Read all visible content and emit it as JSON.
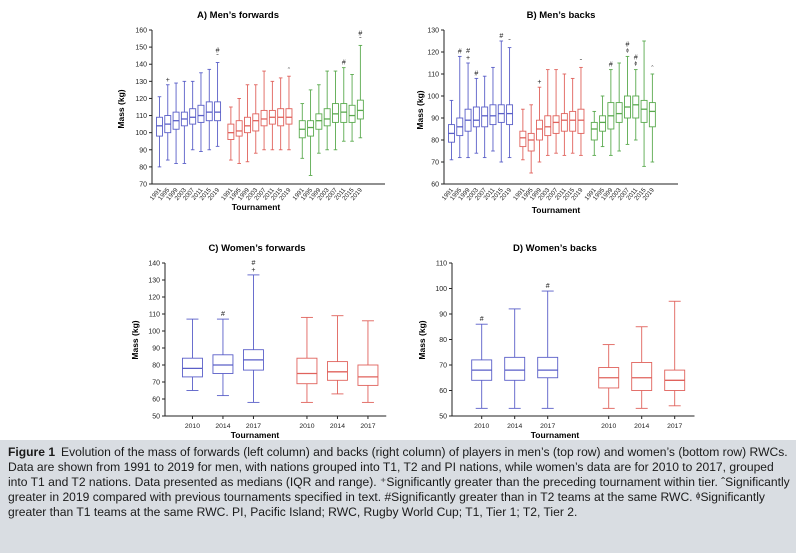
{
  "colors": {
    "T1": "#5a5fc8",
    "T2": "#e0625c",
    "PI": "#5aaa4e",
    "axis": "#222222"
  },
  "caption": {
    "figure_label": "Figure 1",
    "text": "Evolution of the mass of forwards (left column) and backs (right column) of players in men’s (top row) and women’s (bottom row) RWCs. Data are shown from 1991 to 2019 for men, with nations grouped into T1, T2 and PI nations, while women’s data are for 2010 to 2017, grouped into T1 and T2 nations. Data presented as medians (IQR and range). ⁺Significantly greater than the preceding tournament within tier. ˆSignificantly greater in 2019 compared with previous tournaments specified in text. #Significantly greater than in T2 teams at the same RWC. ᶲSignificantly greater than T1 teams at the same RWC. PI, Pacific Island; RWC, Rugby World Cup; T1, Tier 1; T2, Tier 2."
  },
  "chart_data": [
    {
      "id": "A",
      "type": "boxplot",
      "title": "A) Men’s forwards",
      "xlabel": "Tournament",
      "ylabel": "Mass (kg)",
      "ylim": [
        70,
        160
      ],
      "yticks": [
        70,
        80,
        90,
        100,
        110,
        120,
        130,
        140,
        150,
        160
      ],
      "groups": [
        {
          "tier": "T1",
          "boxes": [
            {
              "year": "1991",
              "min": 80,
              "q1": 98,
              "median": 104,
              "q3": 109,
              "max": 121,
              "mark": ""
            },
            {
              "year": "1995",
              "min": 84,
              "q1": 100,
              "median": 105,
              "q3": 110,
              "max": 128,
              "mark": "+"
            },
            {
              "year": "1999",
              "min": 82,
              "q1": 102,
              "median": 107,
              "q3": 112,
              "max": 129,
              "mark": ""
            },
            {
              "year": "2003",
              "min": 82,
              "q1": 104,
              "median": 108,
              "q3": 112,
              "max": 130,
              "mark": ""
            },
            {
              "year": "2007",
              "min": 90,
              "q1": 105,
              "median": 109,
              "q3": 114,
              "max": 130,
              "mark": ""
            },
            {
              "year": "2011",
              "min": 89,
              "q1": 106,
              "median": 110,
              "q3": 116,
              "max": 135,
              "mark": ""
            },
            {
              "year": "2015",
              "min": 90,
              "q1": 107,
              "median": 112,
              "q3": 118,
              "max": 137,
              "mark": ""
            },
            {
              "year": "2019",
              "min": 92,
              "q1": 107,
              "median": 112,
              "q3": 118,
              "max": 141,
              "mark": "#ˆ"
            }
          ]
        },
        {
          "tier": "T2",
          "boxes": [
            {
              "year": "1991",
              "min": 84,
              "q1": 96,
              "median": 100,
              "q3": 105,
              "max": 115,
              "mark": ""
            },
            {
              "year": "1995",
              "min": 82,
              "q1": 98,
              "median": 101,
              "q3": 107,
              "max": 120,
              "mark": ""
            },
            {
              "year": "1999",
              "min": 83,
              "q1": 100,
              "median": 104,
              "q3": 109,
              "max": 128,
              "mark": ""
            },
            {
              "year": "2003",
              "min": 88,
              "q1": 101,
              "median": 107,
              "q3": 111,
              "max": 128,
              "mark": ""
            },
            {
              "year": "2007",
              "min": 90,
              "q1": 104,
              "median": 108,
              "q3": 113,
              "max": 136,
              "mark": ""
            },
            {
              "year": "2011",
              "min": 90,
              "q1": 105,
              "median": 109,
              "q3": 113,
              "max": 130,
              "mark": ""
            },
            {
              "year": "2015",
              "min": 90,
              "q1": 104,
              "median": 109,
              "q3": 114,
              "max": 132,
              "mark": ""
            },
            {
              "year": "2019",
              "min": 90,
              "q1": 105,
              "median": 109,
              "q3": 114,
              "max": 133,
              "mark": "ˆ"
            }
          ]
        },
        {
          "tier": "PI",
          "boxes": [
            {
              "year": "1991",
              "min": 85,
              "q1": 97,
              "median": 102,
              "q3": 107,
              "max": 117,
              "mark": ""
            },
            {
              "year": "1995",
              "min": 75,
              "q1": 98,
              "median": 103,
              "q3": 107,
              "max": 125,
              "mark": ""
            },
            {
              "year": "1999",
              "min": 88,
              "q1": 102,
              "median": 107,
              "q3": 111,
              "max": 128,
              "mark": ""
            },
            {
              "year": "2003",
              "min": 90,
              "q1": 104,
              "median": 108,
              "q3": 114,
              "max": 136,
              "mark": ""
            },
            {
              "year": "2007",
              "min": 90,
              "q1": 106,
              "median": 111,
              "q3": 117,
              "max": 136,
              "mark": ""
            },
            {
              "year": "2011",
              "min": 95,
              "q1": 106,
              "median": 112,
              "q3": 117,
              "max": 138,
              "mark": "#"
            },
            {
              "year": "2015",
              "min": 95,
              "q1": 106,
              "median": 110,
              "q3": 116,
              "max": 134,
              "mark": ""
            },
            {
              "year": "2019",
              "min": 97,
              "q1": 108,
              "median": 113,
              "q3": 119,
              "max": 151,
              "mark": "#ˆ"
            }
          ]
        }
      ]
    },
    {
      "id": "B",
      "type": "boxplot",
      "title": "B) Men’s backs",
      "xlabel": "Tournament",
      "ylabel": "Mass (kg)",
      "ylim": [
        60,
        130
      ],
      "yticks": [
        60,
        70,
        80,
        90,
        100,
        110,
        120,
        130
      ],
      "groups": [
        {
          "tier": "T1",
          "boxes": [
            {
              "year": "1991",
              "min": 71,
              "q1": 79,
              "median": 83,
              "q3": 87,
              "max": 98,
              "mark": ""
            },
            {
              "year": "1995",
              "min": 72,
              "q1": 82,
              "median": 86,
              "q3": 90,
              "max": 118,
              "mark": "#"
            },
            {
              "year": "1999",
              "min": 72,
              "q1": 84,
              "median": 89,
              "q3": 94,
              "max": 115,
              "mark": "#+"
            },
            {
              "year": "2003",
              "min": 74,
              "q1": 86,
              "median": 89,
              "q3": 95,
              "max": 108,
              "mark": "#"
            },
            {
              "year": "2007",
              "min": 72,
              "q1": 86,
              "median": 91,
              "q3": 95,
              "max": 109,
              "mark": ""
            },
            {
              "year": "2011",
              "min": 75,
              "q1": 87,
              "median": 91,
              "q3": 96,
              "max": 113,
              "mark": ""
            },
            {
              "year": "2015",
              "min": 70,
              "q1": 88,
              "median": 92,
              "q3": 96,
              "max": 125,
              "mark": "#"
            },
            {
              "year": "2019",
              "min": 72,
              "q1": 87,
              "median": 92,
              "q3": 96,
              "max": 122,
              "mark": "ˆ"
            }
          ]
        },
        {
          "tier": "T2",
          "boxes": [
            {
              "year": "1991",
              "min": 71,
              "q1": 77,
              "median": 81,
              "q3": 84,
              "max": 94,
              "mark": ""
            },
            {
              "year": "1995",
              "min": 65,
              "q1": 75,
              "median": 80,
              "q3": 83,
              "max": 96,
              "mark": ""
            },
            {
              "year": "1999",
              "min": 70,
              "q1": 80,
              "median": 85,
              "q3": 89,
              "max": 104,
              "mark": "+"
            },
            {
              "year": "2003",
              "min": 73,
              "q1": 82,
              "median": 86,
              "q3": 91,
              "max": 112,
              "mark": ""
            },
            {
              "year": "2007",
              "min": 74,
              "q1": 83,
              "median": 88,
              "q3": 91,
              "max": 112,
              "mark": ""
            },
            {
              "year": "2011",
              "min": 73,
              "q1": 84,
              "median": 89,
              "q3": 92,
              "max": 110,
              "mark": ""
            },
            {
              "year": "2015",
              "min": 74,
              "q1": 84,
              "median": 89,
              "q3": 93,
              "max": 108,
              "mark": ""
            },
            {
              "year": "2019",
              "min": 73,
              "q1": 83,
              "median": 89,
              "q3": 94,
              "max": 113,
              "mark": "ˆ"
            }
          ]
        },
        {
          "tier": "PI",
          "boxes": [
            {
              "year": "1991",
              "min": 73,
              "q1": 80,
              "median": 85,
              "q3": 88,
              "max": 93,
              "mark": ""
            },
            {
              "year": "1995",
              "min": 77,
              "q1": 84,
              "median": 88,
              "q3": 91,
              "max": 100,
              "mark": ""
            },
            {
              "year": "1999",
              "min": 73,
              "q1": 85,
              "median": 91,
              "q3": 97,
              "max": 112,
              "mark": "#"
            },
            {
              "year": "2003",
              "min": 75,
              "q1": 88,
              "median": 92,
              "q3": 97,
              "max": 115,
              "mark": ""
            },
            {
              "year": "2007",
              "min": 78,
              "q1": 90,
              "median": 95,
              "q3": 100,
              "max": 118,
              "mark": "#ᶲ"
            },
            {
              "year": "2011",
              "min": 80,
              "q1": 90,
              "median": 96,
              "q3": 100,
              "max": 112,
              "mark": "#ᶲ"
            },
            {
              "year": "2015",
              "min": 68,
              "q1": 88,
              "median": 94,
              "q3": 98,
              "max": 125,
              "mark": ""
            },
            {
              "year": "2019",
              "min": 70,
              "q1": 86,
              "median": 93,
              "q3": 97,
              "max": 110,
              "mark": "ˆ"
            }
          ]
        }
      ]
    },
    {
      "id": "C",
      "type": "boxplot",
      "title": "C) Women’s forwards",
      "xlabel": "Tournament",
      "ylabel": "Mass (kg)",
      "ylim": [
        50,
        140
      ],
      "yticks": [
        50,
        60,
        70,
        80,
        90,
        100,
        110,
        120,
        130,
        140
      ],
      "groups": [
        {
          "tier": "T1",
          "boxes": [
            {
              "year": "2010",
              "min": 65,
              "q1": 73,
              "median": 78,
              "q3": 84,
              "max": 107,
              "mark": ""
            },
            {
              "year": "2014",
              "min": 62,
              "q1": 75,
              "median": 80,
              "q3": 86,
              "max": 107,
              "mark": "#"
            },
            {
              "year": "2017",
              "min": 58,
              "q1": 77,
              "median": 83,
              "q3": 89,
              "max": 133,
              "mark": "#+"
            }
          ]
        },
        {
          "tier": "T2",
          "boxes": [
            {
              "year": "2010",
              "min": 58,
              "q1": 69,
              "median": 75,
              "q3": 84,
              "max": 108,
              "mark": ""
            },
            {
              "year": "2014",
              "min": 63,
              "q1": 71,
              "median": 76,
              "q3": 82,
              "max": 109,
              "mark": ""
            },
            {
              "year": "2017",
              "min": 58,
              "q1": 68,
              "median": 73,
              "q3": 80,
              "max": 106,
              "mark": ""
            }
          ]
        }
      ]
    },
    {
      "id": "D",
      "type": "boxplot",
      "title": "D) Women’s backs",
      "xlabel": "Tournament",
      "ylabel": "Mass (kg)",
      "ylim": [
        50,
        110
      ],
      "yticks": [
        50,
        60,
        70,
        80,
        90,
        100,
        110
      ],
      "groups": [
        {
          "tier": "T1",
          "boxes": [
            {
              "year": "2010",
              "min": 53,
              "q1": 64,
              "median": 68,
              "q3": 72,
              "max": 86,
              "mark": "#"
            },
            {
              "year": "2014",
              "min": 53,
              "q1": 64,
              "median": 68,
              "q3": 73,
              "max": 92,
              "mark": ""
            },
            {
              "year": "2017",
              "min": 53,
              "q1": 65,
              "median": 68,
              "q3": 73,
              "max": 99,
              "mark": "#"
            }
          ]
        },
        {
          "tier": "T2",
          "boxes": [
            {
              "year": "2010",
              "min": 53,
              "q1": 61,
              "median": 65,
              "q3": 69,
              "max": 78,
              "mark": ""
            },
            {
              "year": "2014",
              "min": 53,
              "q1": 60,
              "median": 65,
              "q3": 71,
              "max": 85,
              "mark": ""
            },
            {
              "year": "2017",
              "min": 54,
              "q1": 60,
              "median": 64,
              "q3": 68,
              "max": 95,
              "mark": ""
            }
          ]
        }
      ]
    }
  ]
}
